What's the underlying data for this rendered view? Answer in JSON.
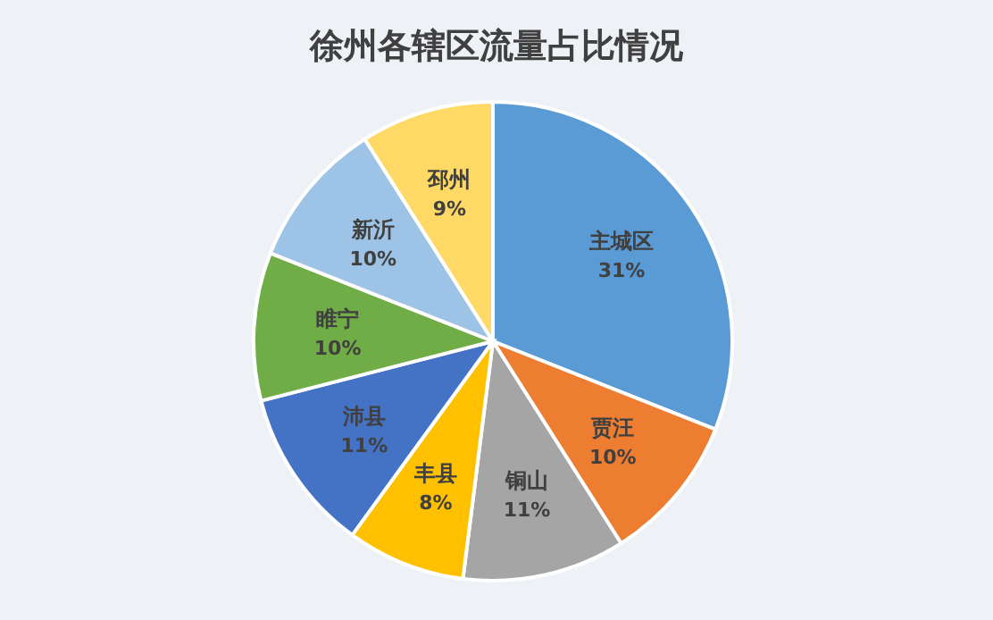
{
  "chart_data": {
    "type": "pie",
    "title": "徐州各辖区流量占比情况",
    "categories": [
      "主城区",
      "贾汪",
      "铜山",
      "丰县",
      "沛县",
      "睢宁",
      "新沂",
      "邳州"
    ],
    "values": [
      31,
      10,
      11,
      8,
      11,
      10,
      10,
      9
    ],
    "colors": [
      "#5b9bd5",
      "#ed7d31",
      "#a5a5a5",
      "#ffc000",
      "#4472c4",
      "#70ad47",
      "#9dc3e6",
      "#ffd966"
    ],
    "value_labels": [
      "31%",
      "10%",
      "11%",
      "8%",
      "11%",
      "10%",
      "10%",
      "9%"
    ]
  }
}
